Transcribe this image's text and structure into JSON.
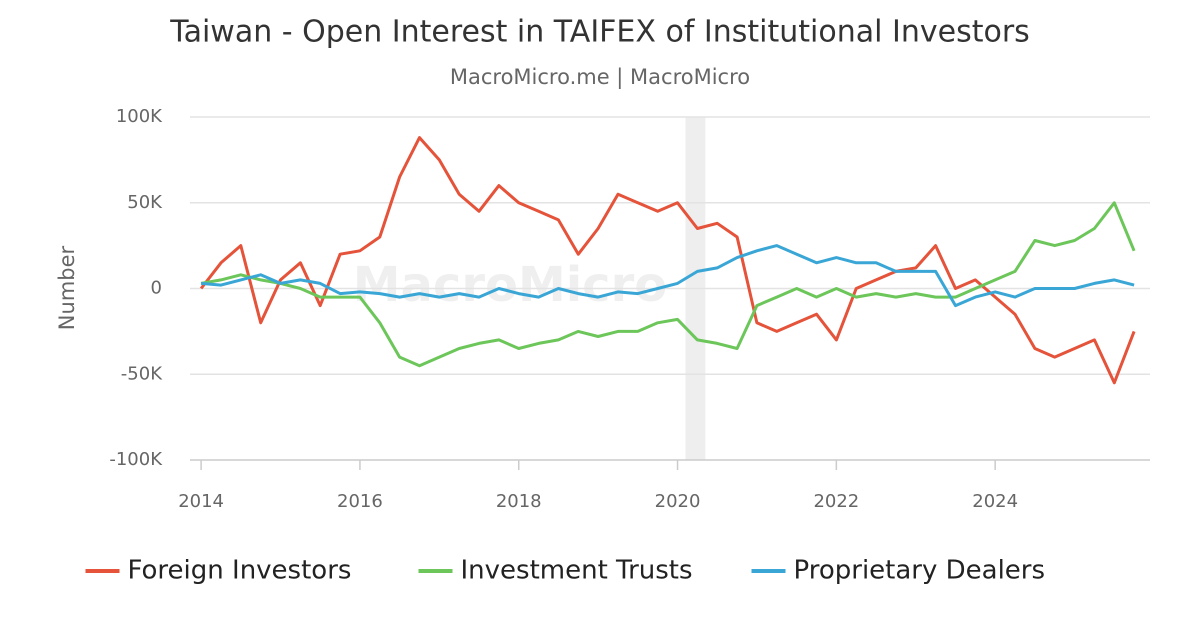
{
  "chart_data": {
    "type": "line",
    "title": "Taiwan - Open Interest in TAIFEX of Institutional Investors",
    "subtitle": "MacroMicro.me | MacroMicro",
    "watermark": "MacroMicro",
    "y_label": "Number",
    "x": [
      2014.0,
      2014.25,
      2014.5,
      2014.75,
      2015.0,
      2015.25,
      2015.5,
      2015.75,
      2016.0,
      2016.25,
      2016.5,
      2016.75,
      2017.0,
      2017.25,
      2017.5,
      2017.75,
      2018.0,
      2018.25,
      2018.5,
      2018.75,
      2019.0,
      2019.25,
      2019.5,
      2019.75,
      2020.0,
      2020.25,
      2020.5,
      2020.75,
      2021.0,
      2021.25,
      2021.5,
      2021.75,
      2022.0,
      2022.25,
      2022.5,
      2022.75,
      2023.0,
      2023.25,
      2023.5,
      2023.75,
      2024.0,
      2024.25,
      2024.5,
      2024.75,
      2025.0,
      2025.25,
      2025.5,
      2025.75
    ],
    "series": [
      {
        "name": "Foreign Investors",
        "color": "#e4533a",
        "values": [
          0,
          15000,
          25000,
          -20000,
          5000,
          15000,
          -10000,
          20000,
          22000,
          30000,
          65000,
          88000,
          75000,
          55000,
          45000,
          60000,
          50000,
          45000,
          40000,
          20000,
          35000,
          55000,
          50000,
          45000,
          50000,
          35000,
          38000,
          30000,
          -20000,
          -25000,
          -20000,
          -15000,
          -30000,
          0,
          5000,
          10000,
          12000,
          25000,
          0,
          5000,
          -5000,
          -15000,
          -35000,
          -40000,
          -35000,
          -30000,
          -55000,
          -25000
        ]
      },
      {
        "name": "Investment Trusts",
        "color": "#6cc65a",
        "values": [
          3000,
          5000,
          8000,
          5000,
          3000,
          0,
          -5000,
          -5000,
          -5000,
          -20000,
          -40000,
          -45000,
          -40000,
          -35000,
          -32000,
          -30000,
          -35000,
          -32000,
          -30000,
          -25000,
          -28000,
          -25000,
          -25000,
          -20000,
          -18000,
          -30000,
          -32000,
          -35000,
          -10000,
          -5000,
          0,
          -5000,
          0,
          -5000,
          -3000,
          -5000,
          -3000,
          -5000,
          -5000,
          0,
          5000,
          10000,
          28000,
          25000,
          28000,
          35000,
          50000,
          22000
        ]
      },
      {
        "name": "Proprietary Dealers",
        "color": "#3aa6d6",
        "values": [
          3000,
          2000,
          5000,
          8000,
          3000,
          5000,
          3000,
          -3000,
          -2000,
          -3000,
          -5000,
          -3000,
          -5000,
          -3000,
          -5000,
          0,
          -3000,
          -5000,
          0,
          -3000,
          -5000,
          -2000,
          -3000,
          0,
          3000,
          10000,
          12000,
          18000,
          22000,
          25000,
          20000,
          15000,
          18000,
          15000,
          15000,
          10000,
          10000,
          10000,
          -10000,
          -5000,
          -2000,
          -5000,
          0,
          0,
          0,
          3000,
          5000,
          2000
        ]
      }
    ],
    "shaded": [
      2020.1,
      2020.35
    ],
    "xlim": [
      2013.86,
      2025.95
    ],
    "xticks": [
      2014,
      2016,
      2018,
      2020,
      2022,
      2024
    ],
    "ylim": [
      -100000,
      100000
    ],
    "yticks": [
      {
        "value": -100000,
        "label": "-100K"
      },
      {
        "value": -50000,
        "label": "-50K"
      },
      0,
      {
        "value": 50000,
        "label": "50K"
      },
      {
        "value": 100000,
        "label": "100K"
      }
    ],
    "grid": true,
    "legend": "bottom"
  }
}
